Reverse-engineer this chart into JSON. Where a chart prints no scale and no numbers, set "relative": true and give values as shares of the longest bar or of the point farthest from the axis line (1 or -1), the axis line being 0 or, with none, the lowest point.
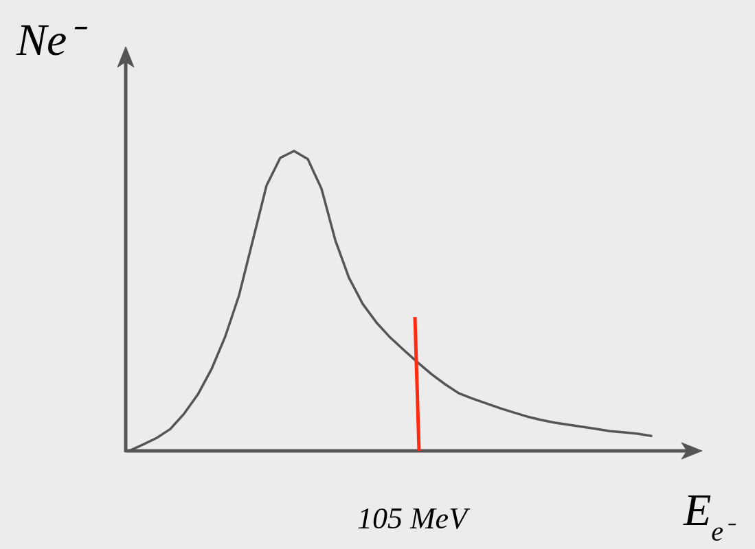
{
  "chart_data": {
    "type": "line",
    "relative": true,
    "xlabel": "E$_{e⁻}$",
    "ylabel": "Ne⁻",
    "categories": [
      null,
      null,
      null,
      null,
      null,
      null,
      null,
      null,
      null,
      null,
      null,
      null,
      null,
      null,
      null,
      null,
      null,
      null,
      null,
      null,
      null,
      null,
      null,
      null,
      null,
      null,
      null,
      null,
      null,
      null,
      null,
      null,
      null,
      null,
      null,
      null,
      null,
      null,
      null
    ],
    "series": [
      {
        "color": "#555555",
        "values": [
          0,
          0.021,
          0.043,
          0.073,
          0.124,
          0.188,
          0.273,
          0.382,
          0.519,
          0.702,
          0.885,
          0.977,
          1,
          0.973,
          0.874,
          0.703,
          0.577,
          0.49,
          0.428,
          0.378,
          0.336,
          0.295,
          0.256,
          0.222,
          0.192,
          0.174,
          0.158,
          0.142,
          0.128,
          0.114,
          0.103,
          0.094,
          0.087,
          0.08,
          0.073,
          0.066,
          0.062,
          0.057,
          0.05
        ]
      }
    ],
    "annotations": [
      "105 MeV"
    ],
    "marker": "none",
    "line_style": "solid",
    "grid": false,
    "legend": false
  }
}
